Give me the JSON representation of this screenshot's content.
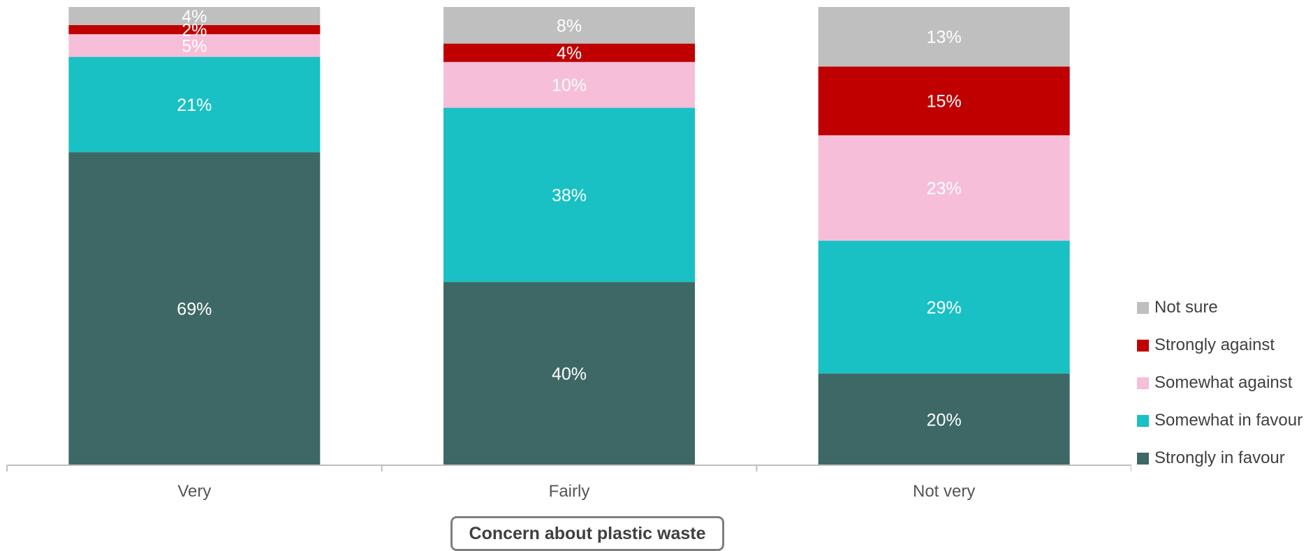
{
  "chart_data": {
    "type": "bar",
    "stacked": true,
    "categories": [
      "Very",
      "Fairly",
      "Not very"
    ],
    "xlabel": "Concern about plastic waste",
    "ylim": [
      0,
      100
    ],
    "grid": false,
    "legend_position": "right",
    "series": [
      {
        "name": "Strongly in favour",
        "color": "#3e6865",
        "values": [
          69,
          40,
          20
        ]
      },
      {
        "name": "Somewhat in favour",
        "color": "#19c0c4",
        "values": [
          21,
          38,
          29
        ]
      },
      {
        "name": "Somewhat against",
        "color": "#f6bed8",
        "values": [
          5,
          10,
          23
        ]
      },
      {
        "name": "Strongly against",
        "color": "#c00000",
        "values": [
          2,
          4,
          15
        ]
      },
      {
        "name": "Not sure",
        "color": "#bfbfbf",
        "values": [
          4,
          8,
          13
        ]
      }
    ]
  }
}
